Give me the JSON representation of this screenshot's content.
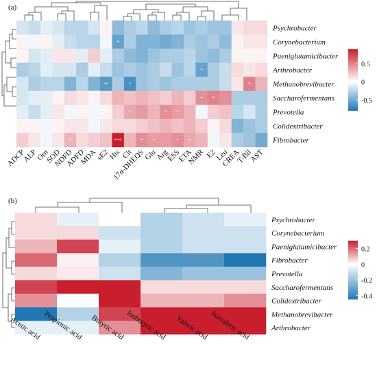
{
  "chart_data": [
    {
      "type": "heatmap",
      "panel_label": "(a)",
      "rows": [
        "Psychrobacter",
        "Corynebacterium",
        "Paeniglutamicibacter",
        "Arthrobacter",
        "Methanobrevibacter",
        "Saccharofermentans",
        "Prevotella",
        "Colidextribacter",
        "Fibrobacter"
      ],
      "columns": [
        "ADCP",
        "ALP",
        "Orn",
        "SOD",
        "NDFD",
        "ADFD",
        "MDA",
        "sE2",
        "His",
        "Cit",
        "17α-DHEQS",
        "Glu",
        "Arg",
        "ESS",
        "ETA",
        "NMR",
        "E2",
        "Leu",
        "CREA",
        "T-Bil",
        "AST"
      ],
      "values": [
        [
          -0.15,
          -0.2,
          -0.1,
          -0.15,
          -0.25,
          -0.25,
          -0.15,
          0.05,
          -0.4,
          -0.3,
          -0.25,
          -0.4,
          -0.3,
          -0.25,
          -0.35,
          -0.3,
          -0.35,
          -0.35,
          0.1,
          0.15,
          0.15
        ],
        [
          0.05,
          -0.05,
          0.05,
          -0.1,
          -0.2,
          -0.25,
          -0.25,
          -0.05,
          -0.55,
          -0.3,
          -0.45,
          -0.45,
          -0.5,
          -0.45,
          -0.3,
          -0.35,
          -0.3,
          -0.4,
          0.05,
          0.1,
          0.1
        ],
        [
          0.05,
          -0.15,
          -0.1,
          0.1,
          0.1,
          -0.1,
          0.2,
          -0.1,
          -0.3,
          -0.4,
          -0.45,
          -0.35,
          -0.3,
          -0.3,
          -0.25,
          -0.35,
          -0.4,
          -0.3,
          0.05,
          0.05,
          0.05
        ],
        [
          -0.3,
          -0.25,
          -0.1,
          -0.15,
          -0.15,
          -0.3,
          -0.1,
          -0.2,
          -0.35,
          -0.3,
          -0.35,
          -0.3,
          -0.2,
          -0.35,
          -0.25,
          -0.55,
          -0.3,
          -0.2,
          0.15,
          0.1,
          0.15
        ],
        [
          -0.15,
          -0.3,
          -0.25,
          -0.25,
          -0.45,
          -0.25,
          -0.45,
          -0.6,
          -0.3,
          -0.65,
          -0.35,
          -0.3,
          -0.35,
          -0.3,
          -0.3,
          -0.3,
          -0.3,
          -0.2,
          0.1,
          0.5,
          0.3
        ],
        [
          -0.15,
          -0.1,
          -0.1,
          0.05,
          0.15,
          0.1,
          0.05,
          0.15,
          0.3,
          0.25,
          0.3,
          0.25,
          0.2,
          0.3,
          0.2,
          0.45,
          0.5,
          0.45,
          -0.3,
          -0.3,
          -0.3
        ],
        [
          -0.1,
          -0.2,
          -0.1,
          0.1,
          -0.05,
          0.05,
          -0.05,
          0.05,
          0.2,
          0.35,
          0.4,
          0.3,
          0.45,
          0.4,
          0.3,
          -0.05,
          0.2,
          0.25,
          -0.25,
          -0.15,
          -0.3
        ],
        [
          0.05,
          0.05,
          -0.05,
          0.05,
          0.1,
          0.1,
          -0.05,
          0.1,
          0.15,
          0.15,
          0.2,
          0.25,
          0.3,
          0.25,
          0.3,
          0.2,
          0.05,
          0.15,
          -0.45,
          -0.35,
          -0.3
        ],
        [
          0.2,
          0.1,
          -0.05,
          0.1,
          0.3,
          0.15,
          0.2,
          0.25,
          0.9,
          0.3,
          0.45,
          0.4,
          0.4,
          0.45,
          0.35,
          0.3,
          -0.05,
          0.1,
          -0.3,
          -0.35,
          -0.5
        ]
      ],
      "significance": [
        {
          "row": "Corynebacterium",
          "column": "His",
          "mark": "*"
        },
        {
          "row": "Arthrobacter",
          "column": "NMR",
          "mark": "*"
        },
        {
          "row": "Methanobrevibacter",
          "column": "sE2",
          "mark": "**"
        },
        {
          "row": "Methanobrevibacter",
          "column": "Cit",
          "mark": "*"
        },
        {
          "row": "Methanobrevibacter",
          "column": "T-Bil",
          "mark": "*"
        },
        {
          "row": "Saccharofermentans",
          "column": "NMR",
          "mark": "*"
        },
        {
          "row": "Saccharofermentans",
          "column": "E2",
          "mark": "*"
        },
        {
          "row": "Prevotella",
          "column": "Cit",
          "mark": "*"
        },
        {
          "row": "Prevotella",
          "column": "Arg",
          "mark": "*"
        },
        {
          "row": "Prevotella",
          "column": "ESS",
          "mark": "*"
        },
        {
          "row": "Fibrobacter",
          "column": "NDFD",
          "mark": "*"
        },
        {
          "row": "Fibrobacter",
          "column": "His",
          "mark": "***"
        },
        {
          "row": "Fibrobacter",
          "column": "17α-DHEQS",
          "mark": "*"
        },
        {
          "row": "Fibrobacter",
          "column": "Glu",
          "mark": "*"
        },
        {
          "row": "Fibrobacter",
          "column": "ESS",
          "mark": "*"
        },
        {
          "row": "Fibrobacter",
          "column": "ETA",
          "mark": "*"
        }
      ],
      "legend": {
        "ticks": [
          0.5,
          0,
          -0.5
        ],
        "tick_labels": [
          "0.5",
          "0",
          "-0.5"
        ],
        "range": [
          -0.8,
          0.9
        ]
      },
      "colors": {
        "negative": "#1f77b4",
        "neutral": "#ffffff",
        "positive": "#c81e2e"
      }
    },
    {
      "type": "heatmap",
      "panel_label": "(b)",
      "rows": [
        "Psychrobacter",
        "Corynebacterium",
        "Paeniglutamicibacter",
        "Fibrobacter",
        "Prevotella",
        "Saccharofermentans",
        "Colidextribacter",
        "Methanobrevibacter",
        "Arthrobacter"
      ],
      "columns": [
        "Acetic acid",
        "Propionic acid",
        "Butyric acid",
        "Isobutyric acid",
        "Valeric acid",
        "Isovaleric acid"
      ],
      "values": [
        [
          0.05,
          -0.05,
          0.0,
          -0.15,
          -0.1,
          -0.05
        ],
        [
          0.05,
          0.05,
          -0.1,
          -0.15,
          -0.1,
          -0.1
        ],
        [
          0.1,
          0.25,
          -0.05,
          -0.15,
          -0.1,
          -0.1
        ],
        [
          0.2,
          0.02,
          -0.15,
          -0.35,
          -0.35,
          -0.45
        ],
        [
          0.05,
          0.03,
          -0.1,
          -0.25,
          -0.2,
          -0.2
        ],
        [
          0.25,
          0.3,
          0.3,
          0.05,
          0.05,
          0.05
        ],
        [
          0.15,
          0.0,
          0.3,
          0.1,
          0.1,
          0.15
        ],
        [
          -0.45,
          -0.15,
          0.25,
          0.3,
          0.3,
          0.3
        ],
        [
          -0.05,
          -0.05,
          0.15,
          0.3,
          0.3,
          0.3
        ]
      ],
      "legend": {
        "ticks": [
          0.2,
          0,
          -0.2,
          -0.4
        ],
        "tick_labels": [
          "0.2",
          "0",
          "-0.2",
          "-0.4"
        ],
        "range": [
          -0.45,
          0.3
        ]
      },
      "colors": {
        "negative": "#1f77b4",
        "neutral": "#ffffff",
        "positive": "#c81e2e"
      }
    }
  ]
}
